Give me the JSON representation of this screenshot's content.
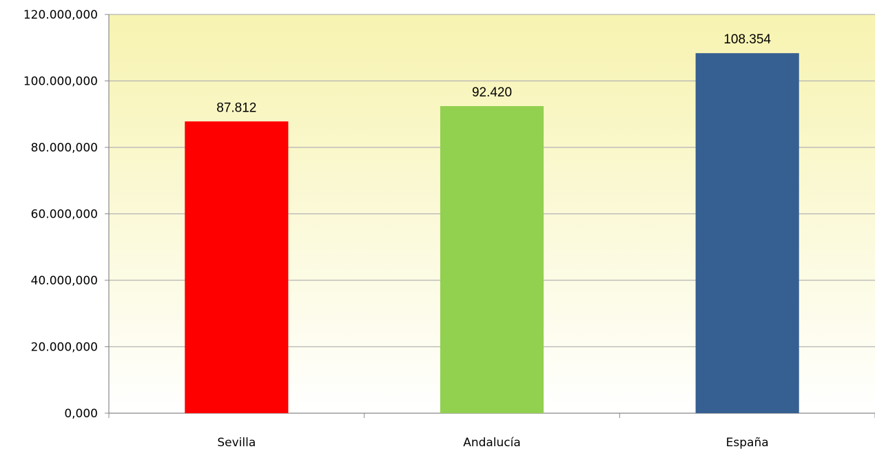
{
  "chart_data": {
    "type": "bar",
    "categories": [
      "Sevilla",
      "Andalucía",
      "España"
    ],
    "values": [
      87.812,
      92.42,
      108.354
    ],
    "data_labels": [
      "87.812",
      "92.420",
      "108.354"
    ],
    "bar_colors": [
      "#ff0000",
      "#92d050",
      "#376092"
    ],
    "ylim": [
      0,
      120
    ],
    "yticks": [
      0,
      20,
      40,
      60,
      80,
      100,
      120
    ],
    "ytick_labels": [
      "0,000",
      "20.000,000",
      "40.000,000",
      "60.000,000",
      "80.000,000",
      "100.000,000",
      "120.000,000"
    ],
    "title": "",
    "xlabel": "",
    "ylabel": "",
    "grid": true,
    "legend": "none",
    "plot_background": [
      "#f7f3b0",
      "#ffffff"
    ]
  }
}
